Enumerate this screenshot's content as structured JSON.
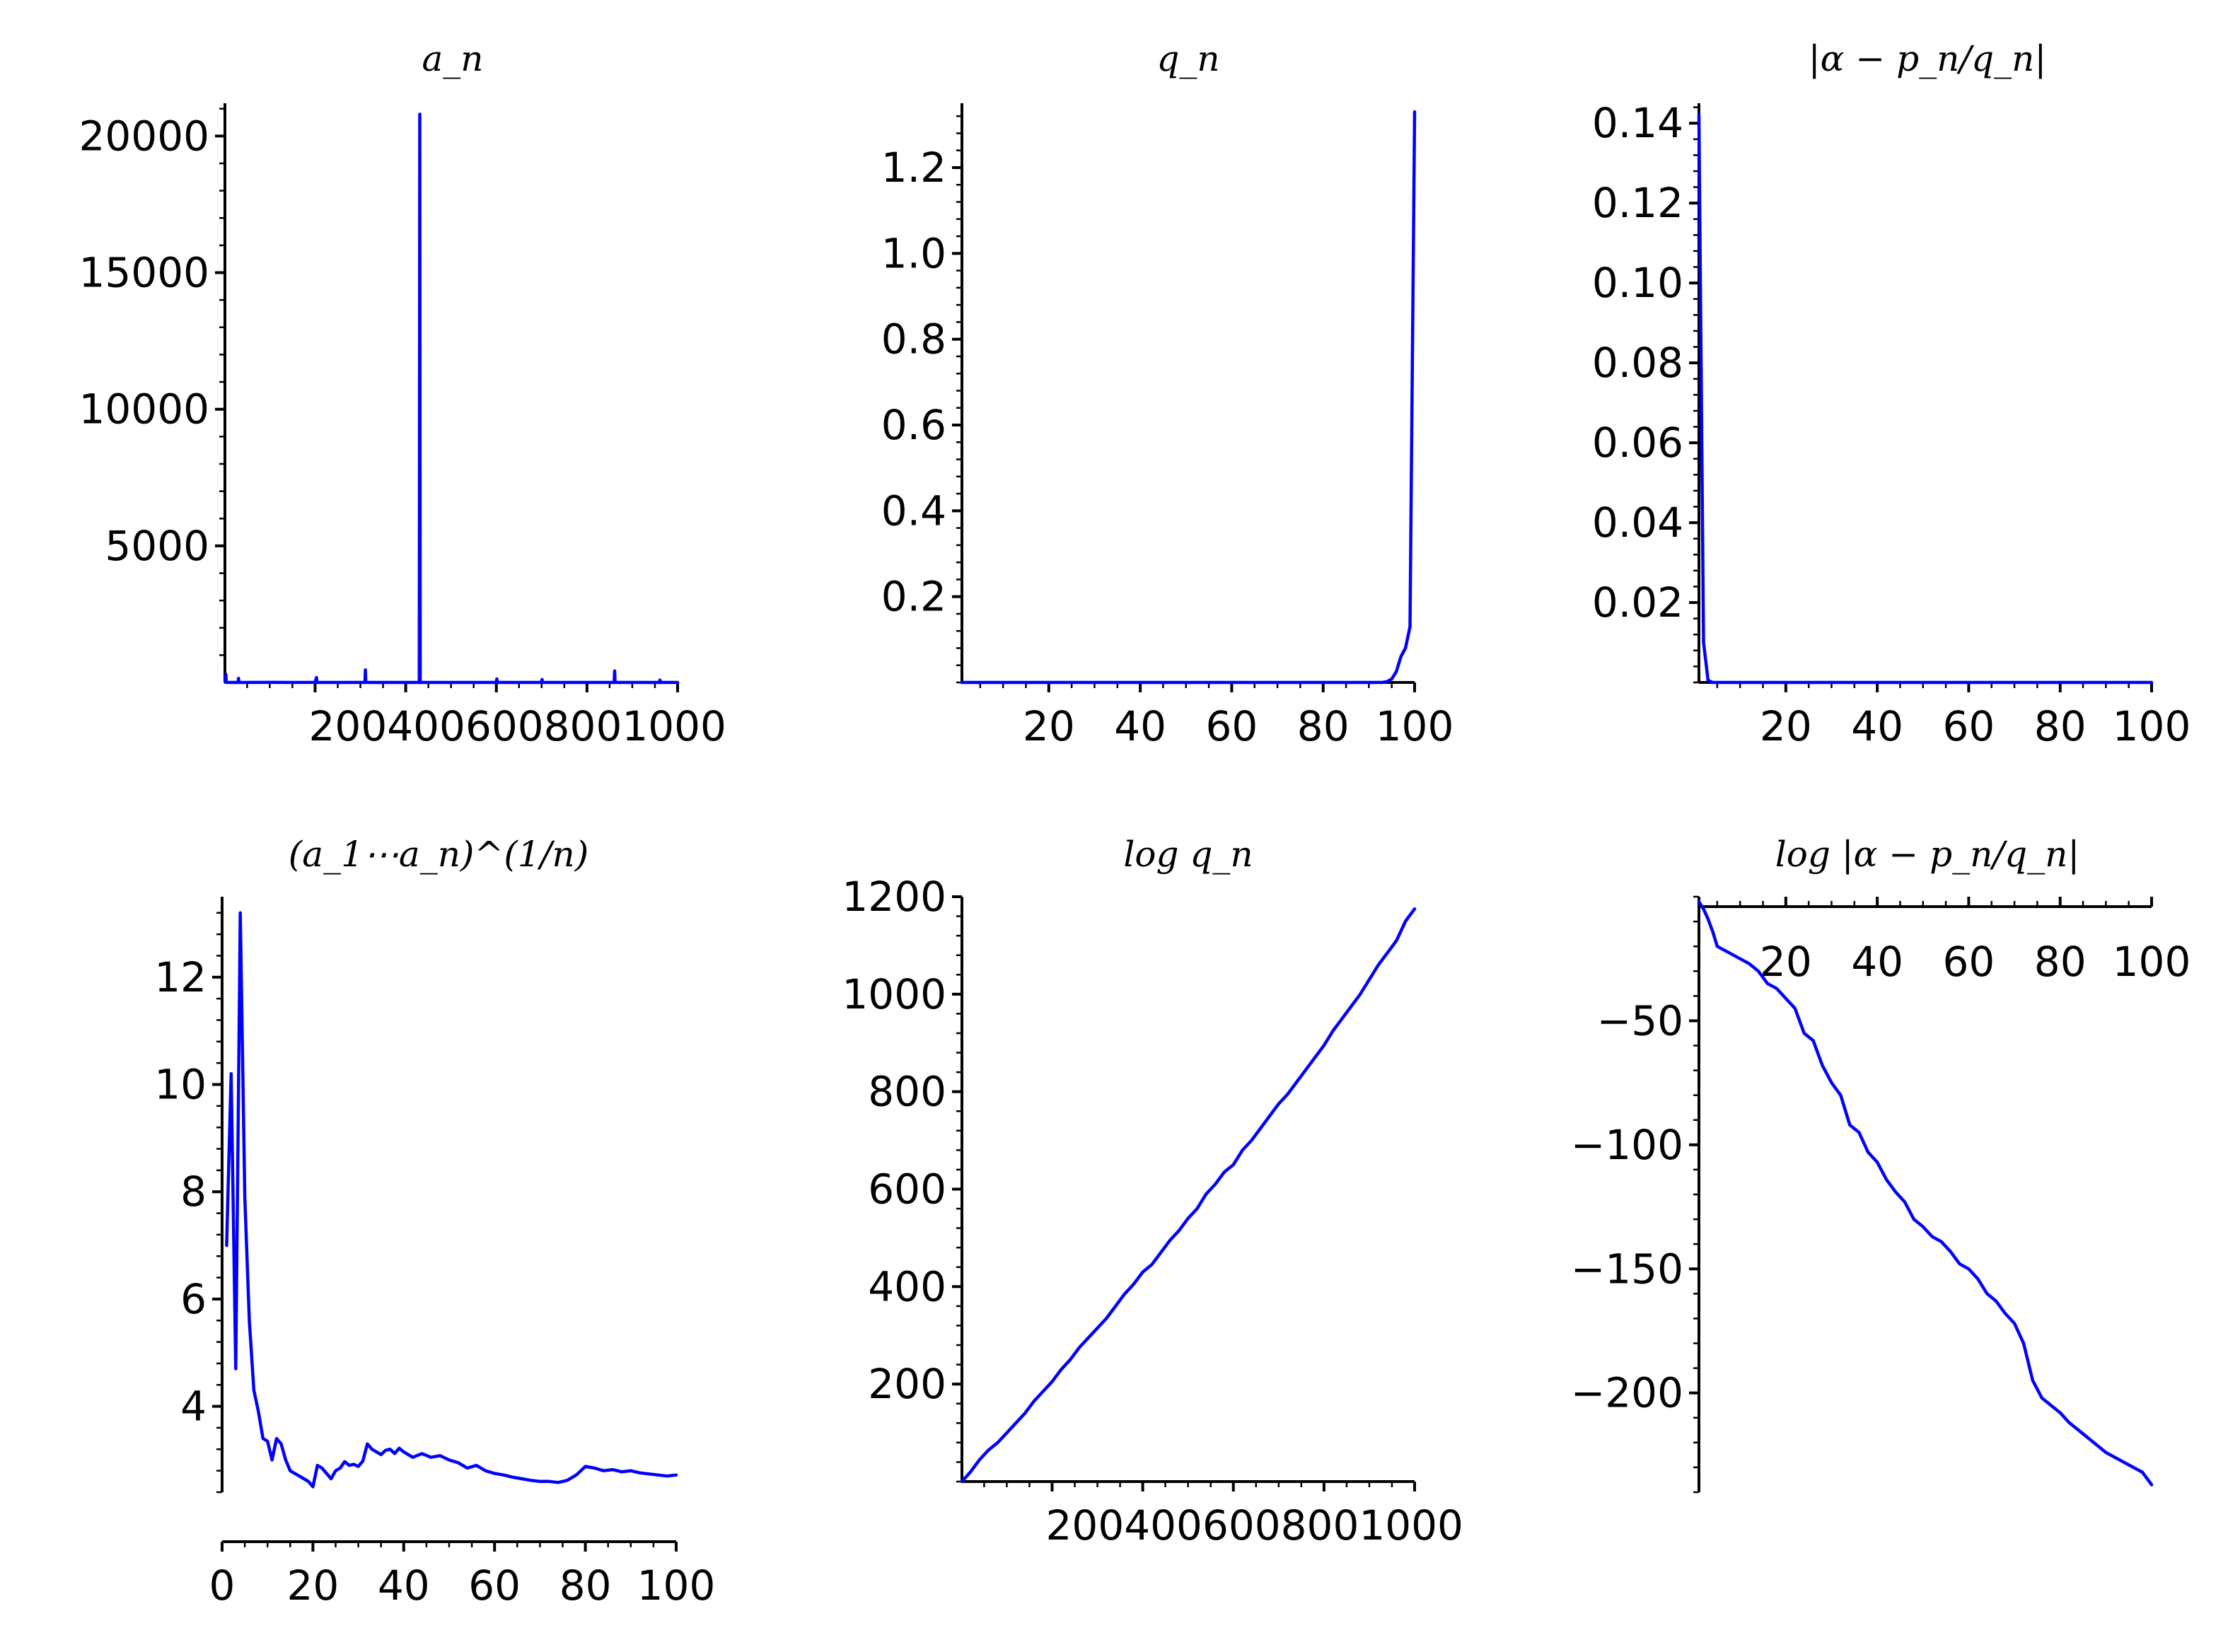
{
  "colors": {
    "series": "#0000ff",
    "axis": "#000000",
    "background": "#ffffff"
  },
  "chart_data": [
    {
      "type": "line",
      "title": "a_n",
      "xlim": [
        1,
        1000
      ],
      "ylim": [
        1,
        21200
      ],
      "xticks": [
        200,
        400,
        600,
        800,
        1000
      ],
      "xtick_labels": [
        "200",
        "400",
        "600",
        "800",
        "1000"
      ],
      "xtick_labels_joined": "2004006008001000",
      "yticks": [
        5000,
        10000,
        15000,
        20000
      ],
      "ytick_labels": [
        "5000",
        "10000",
        "15000",
        "20000"
      ],
      "x_axis_at": 1,
      "grid": false,
      "series": [
        {
          "x": [
            1,
            2,
            3,
            4,
            5,
            10,
            30,
            31,
            32,
            50,
            100,
            140,
            200,
            203,
            204,
            205,
            300,
            310,
            311,
            312,
            400,
            430,
            431,
            432,
            433,
            434,
            435,
            500,
            600,
            601,
            602,
            700,
            701,
            702,
            800,
            850,
            860,
            861,
            862,
            900,
            960,
            961,
            962,
            1000
          ],
          "y": [
            150,
            7,
            300,
            5,
            3,
            2,
            1,
            150,
            1,
            2,
            3,
            2,
            3,
            180,
            2,
            1,
            2,
            1,
            460,
            1,
            2,
            1,
            20800,
            1,
            2,
            1,
            3,
            2,
            1,
            130,
            1,
            2,
            110,
            1,
            2,
            1,
            1,
            420,
            1,
            2,
            1,
            90,
            1,
            2
          ]
        }
      ]
    },
    {
      "type": "line",
      "title": "q_n",
      "ylabel_exponent": "",
      "xlim": [
        1,
        100
      ],
      "ylim": [
        0,
        1.35
      ],
      "xticks": [
        20,
        40,
        60,
        80,
        100
      ],
      "xtick_labels": [
        "20",
        "40",
        "60",
        "80",
        "100"
      ],
      "yticks": [
        0.2,
        0.4,
        0.6,
        0.8,
        1.0,
        1.2
      ],
      "ytick_labels": [
        "0.2",
        "0.4",
        "0.6",
        "0.8",
        "1.0",
        "1.2"
      ],
      "x_axis_at": 0,
      "grid": false,
      "series": [
        {
          "x": [
            1,
            90,
            93,
            94,
            95,
            96,
            97,
            98,
            99,
            100
          ],
          "y": [
            0,
            0,
            0,
            0.002,
            0.008,
            0.025,
            0.06,
            0.08,
            0.13,
            1.33
          ]
        }
      ]
    },
    {
      "type": "line",
      "title": "|α − p_n/q_n|",
      "xlim": [
        1,
        100
      ],
      "ylim": [
        0,
        0.145
      ],
      "xticks": [
        20,
        40,
        60,
        80,
        100
      ],
      "xtick_labels": [
        "20",
        "40",
        "60",
        "80",
        "100"
      ],
      "yticks": [
        0.02,
        0.04,
        0.06,
        0.08,
        0.1,
        0.12,
        0.14
      ],
      "ytick_labels": [
        "0.02",
        "0.04",
        "0.06",
        "0.08",
        "0.10",
        "0.12",
        "0.14"
      ],
      "x_axis_at": 0,
      "grid": false,
      "series": [
        {
          "x": [
            1,
            2,
            3,
            4,
            100
          ],
          "y": [
            0.142,
            0.01,
            0.0005,
            0,
            0
          ]
        }
      ]
    },
    {
      "type": "line",
      "title": "(a_1⋯a_n)^(1/n)",
      "xlim": [
        0,
        100
      ],
      "ylim": [
        2.4,
        13.5
      ],
      "xticks": [
        0,
        20,
        40,
        60,
        80,
        100
      ],
      "xtick_labels": [
        "0",
        "20",
        "40",
        "60",
        "80",
        "100"
      ],
      "yticks": [
        4,
        6,
        8,
        10,
        12
      ],
      "ytick_labels": [
        "4",
        "6",
        "8",
        "10",
        "12"
      ],
      "x_axis_at": 1.4,
      "grid": false,
      "series": [
        {
          "x": [
            1,
            2,
            3,
            4,
            5,
            6,
            7,
            8,
            9,
            10,
            11,
            12,
            13,
            14,
            15,
            16,
            17,
            18,
            19,
            20,
            21,
            22,
            23,
            24,
            25,
            26,
            27,
            28,
            29,
            30,
            31,
            32,
            33,
            34,
            35,
            36,
            37,
            38,
            39,
            40,
            42,
            44,
            46,
            48,
            50,
            52,
            54,
            56,
            58,
            60,
            62,
            64,
            66,
            68,
            70,
            72,
            74,
            76,
            78,
            80,
            82,
            84,
            86,
            88,
            90,
            92,
            94,
            96,
            98,
            100
          ],
          "y": [
            7.0,
            10.2,
            4.7,
            13.2,
            7.9,
            5.6,
            4.3,
            3.9,
            3.4,
            3.35,
            3.0,
            3.4,
            3.3,
            3.0,
            2.8,
            2.75,
            2.7,
            2.65,
            2.6,
            2.5,
            2.9,
            2.85,
            2.75,
            2.65,
            2.8,
            2.85,
            2.97,
            2.9,
            2.92,
            2.88,
            2.98,
            3.3,
            3.2,
            3.15,
            3.1,
            3.18,
            3.2,
            3.12,
            3.22,
            3.15,
            3.05,
            3.12,
            3.05,
            3.08,
            3.0,
            2.95,
            2.85,
            2.9,
            2.8,
            2.75,
            2.72,
            2.68,
            2.65,
            2.62,
            2.6,
            2.6,
            2.58,
            2.62,
            2.72,
            2.88,
            2.85,
            2.8,
            2.82,
            2.78,
            2.8,
            2.76,
            2.74,
            2.72,
            2.7,
            2.72
          ]
        }
      ]
    },
    {
      "type": "line",
      "title": "log q_n",
      "xlim": [
        1,
        1000
      ],
      "ylim": [
        0,
        1200
      ],
      "xticks": [
        200,
        400,
        600,
        800,
        1000
      ],
      "xtick_labels": [
        "200",
        "400",
        "600",
        "800",
        "1000"
      ],
      "xtick_labels_joined": "2004006008001000",
      "yticks": [
        200,
        400,
        600,
        800,
        1000,
        1200
      ],
      "ytick_labels": [
        "200",
        "400",
        "600",
        "800",
        "1000",
        "1200"
      ],
      "x_axis_at": 0,
      "grid": false,
      "series": [
        {
          "x": [
            1,
            20,
            40,
            60,
            80,
            100,
            120,
            140,
            160,
            180,
            200,
            220,
            240,
            260,
            280,
            300,
            320,
            340,
            360,
            380,
            400,
            420,
            440,
            460,
            480,
            500,
            520,
            540,
            560,
            580,
            600,
            620,
            640,
            660,
            680,
            700,
            720,
            740,
            760,
            780,
            800,
            820,
            840,
            860,
            880,
            900,
            920,
            940,
            960,
            980,
            1000
          ],
          "y": [
            0,
            20,
            45,
            65,
            80,
            100,
            120,
            140,
            165,
            185,
            205,
            230,
            250,
            275,
            295,
            315,
            335,
            360,
            385,
            405,
            430,
            445,
            470,
            495,
            515,
            540,
            560,
            590,
            610,
            635,
            650,
            680,
            700,
            725,
            750,
            775,
            795,
            820,
            845,
            870,
            895,
            925,
            950,
            975,
            1000,
            1030,
            1060,
            1085,
            1110,
            1150,
            1175
          ]
        }
      ]
    },
    {
      "type": "line",
      "title": "log |α − p_n/q_n|",
      "xlim": [
        1,
        100
      ],
      "ylim": [
        -240,
        0
      ],
      "xticks": [
        20,
        40,
        60,
        80,
        100
      ],
      "xtick_labels": [
        "20",
        "40",
        "60",
        "80",
        "100"
      ],
      "yticks": [
        -200,
        -150,
        -100,
        -50
      ],
      "ytick_labels": [
        "−200",
        "−150",
        "−100",
        "−50"
      ],
      "x_axis_at": 0,
      "x_labels_above": true,
      "grid": false,
      "series": [
        {
          "x": [
            1,
            2,
            3,
            4,
            5,
            6,
            8,
            10,
            12,
            14,
            16,
            18,
            20,
            22,
            24,
            26,
            28,
            30,
            32,
            34,
            36,
            38,
            40,
            42,
            44,
            46,
            48,
            50,
            52,
            54,
            56,
            58,
            60,
            62,
            64,
            66,
            68,
            70,
            72,
            74,
            76,
            78,
            80,
            82,
            84,
            86,
            88,
            90,
            92,
            94,
            96,
            98,
            100
          ],
          "y": [
            -2,
            -5,
            -9,
            -14,
            -20,
            -21,
            -23,
            -25,
            -27,
            -30,
            -35,
            -37,
            -41,
            -45,
            -55,
            -58,
            -68,
            -75,
            -80,
            -92,
            -95,
            -103,
            -107,
            -114,
            -119,
            -123,
            -130,
            -133,
            -137,
            -139,
            -143,
            -148,
            -150,
            -154,
            -160,
            -163,
            -168,
            -172,
            -180,
            -195,
            -202,
            -205,
            -208,
            -212,
            -215,
            -218,
            -221,
            -224,
            -226,
            -228,
            -230,
            -232,
            -237
          ]
        }
      ]
    }
  ]
}
